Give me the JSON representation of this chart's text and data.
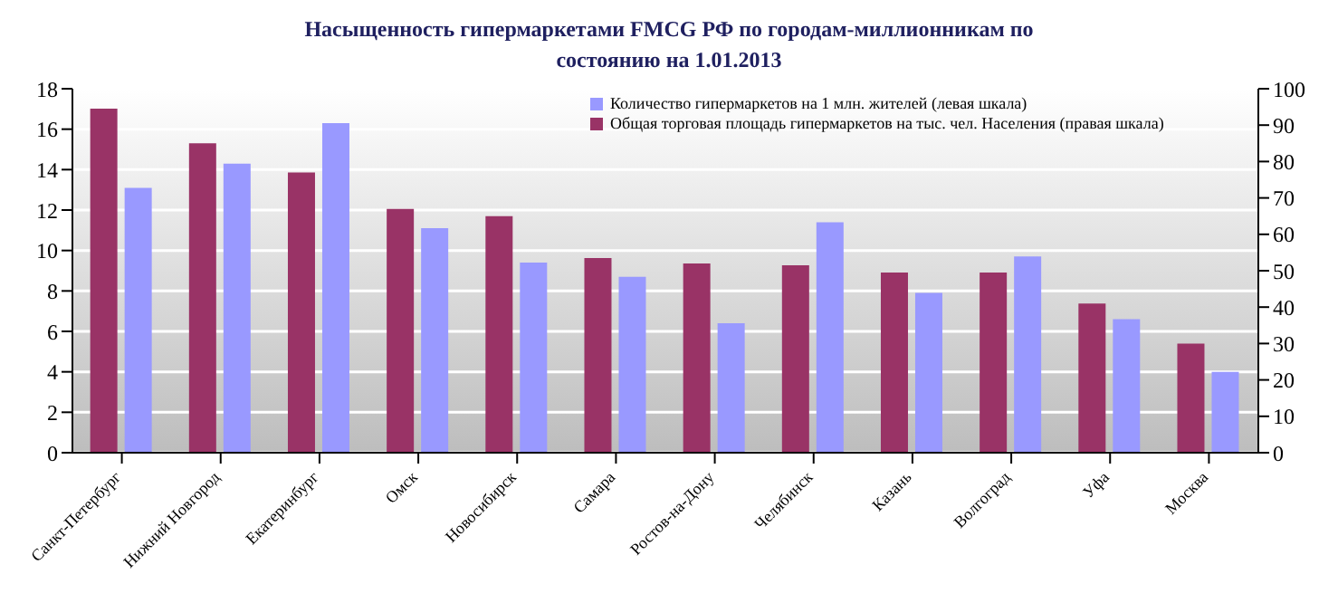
{
  "chart_data": {
    "type": "bar",
    "title": "Насыщенность гипермаркетами FMCG РФ по городам-миллионникам по состоянию на 1.01.2013",
    "categories": [
      "Санкт-Петербург",
      "Нижний Новгород",
      "Екатеринбург",
      "Омск",
      "Новосибирск",
      "Самара",
      "Ростов-на-Дону",
      "Челябинск",
      "Казань",
      "Волгоград",
      "Уфа",
      "Москва"
    ],
    "series": [
      {
        "name": "Общая торговая площадь гипермаркетов на тыс. чел. Населения (правая шкала)",
        "color": "#993366",
        "axis": "y2",
        "values": [
          94.5,
          85,
          77,
          67,
          65,
          53.5,
          52,
          51.5,
          49.5,
          49.5,
          41,
          30
        ]
      },
      {
        "name": "Количество гипермаркетов на 1 млн. жителей (левая шкала)",
        "color": "#9999ff",
        "values": [
          13.1,
          14.3,
          16.3,
          11.1,
          9.4,
          8.7,
          6.4,
          11.4,
          7.9,
          9.7,
          6.6,
          4.0
        ]
      }
    ],
    "ylim": [
      0,
      18
    ],
    "yticks": [
      0,
      2,
      4,
      6,
      8,
      10,
      12,
      14,
      16,
      18
    ],
    "y2lim": [
      0,
      100
    ],
    "y2ticks": [
      0,
      10,
      20,
      30,
      40,
      50,
      60,
      70,
      80,
      90,
      100
    ],
    "grid": "y",
    "legend": "top right"
  }
}
